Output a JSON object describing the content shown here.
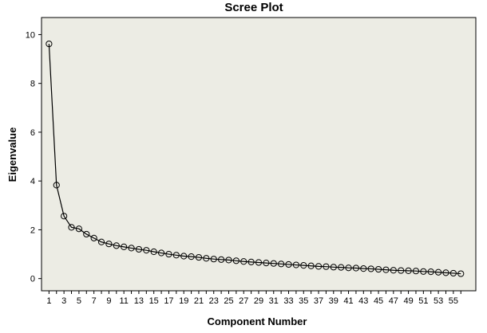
{
  "chart_data": {
    "type": "line",
    "title": "Scree Plot",
    "xlabel": "Component Number",
    "ylabel": "Eigenvalue",
    "xlim": [
      0,
      58
    ],
    "ylim": [
      -0.5,
      10.7
    ],
    "x_tick_labels": [
      "1",
      "3",
      "5",
      "7",
      "9",
      "11",
      "13",
      "15",
      "17",
      "19",
      "21",
      "23",
      "25",
      "27",
      "29",
      "31",
      "33",
      "35",
      "37",
      "39",
      "41",
      "43",
      "45",
      "47",
      "49",
      "51",
      "53",
      "55"
    ],
    "y_tick_labels": [
      "0",
      "2",
      "4",
      "6",
      "8",
      "10"
    ],
    "grid": false,
    "legend": "none",
    "marker": "open-circle",
    "x": [
      1,
      2,
      3,
      4,
      5,
      6,
      7,
      8,
      9,
      10,
      11,
      12,
      13,
      14,
      15,
      16,
      17,
      18,
      19,
      20,
      21,
      22,
      23,
      24,
      25,
      26,
      27,
      28,
      29,
      30,
      31,
      32,
      33,
      34,
      35,
      36,
      37,
      38,
      39,
      40,
      41,
      42,
      43,
      44,
      45,
      46,
      47,
      48,
      49,
      50,
      51,
      52,
      53,
      54,
      55,
      56
    ],
    "y": [
      9.62,
      3.83,
      2.56,
      2.1,
      2.04,
      1.82,
      1.66,
      1.5,
      1.42,
      1.35,
      1.3,
      1.25,
      1.2,
      1.16,
      1.1,
      1.05,
      1.0,
      0.96,
      0.92,
      0.9,
      0.87,
      0.83,
      0.8,
      0.78,
      0.76,
      0.73,
      0.7,
      0.68,
      0.66,
      0.64,
      0.62,
      0.6,
      0.58,
      0.56,
      0.54,
      0.52,
      0.5,
      0.49,
      0.47,
      0.46,
      0.44,
      0.43,
      0.41,
      0.4,
      0.38,
      0.36,
      0.34,
      0.33,
      0.32,
      0.31,
      0.29,
      0.28,
      0.26,
      0.24,
      0.22,
      0.2
    ]
  },
  "colors": {
    "plot_background": "#ecece4",
    "line": "#000000",
    "marker_fill": "none"
  }
}
